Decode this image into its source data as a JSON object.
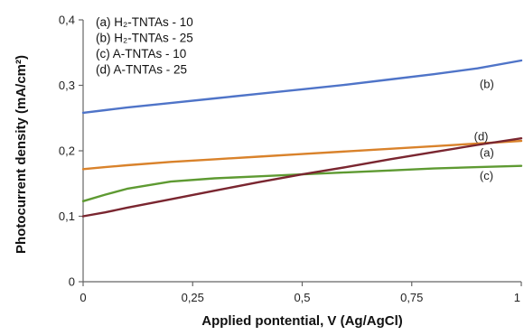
{
  "chart_data": {
    "type": "line",
    "xlabel": "Applied pontential, V (Ag/AgCl)",
    "ylabel": "Photocurrent density (mA/cm²)",
    "xlim": [
      0,
      1
    ],
    "ylim": [
      0,
      0.4
    ],
    "x_ticks": [
      "0",
      "0,25",
      "0,5",
      "0,75",
      "1"
    ],
    "y_ticks": [
      "0",
      "0,1",
      "0,2",
      "0,3",
      "0,4"
    ],
    "grid": false,
    "legend_placement": "top-left",
    "legend": [
      {
        "letter": "(a)",
        "name": "H₂-TNTAs - 10"
      },
      {
        "letter": "(b)",
        "name": "H₂-TNTAs - 25"
      },
      {
        "letter": "(c)",
        "name": "A-TNTAs - 10"
      },
      {
        "letter": "(d)",
        "name": "A-TNTAs - 25"
      }
    ],
    "x": [
      0,
      0.05,
      0.1,
      0.2,
      0.3,
      0.4,
      0.5,
      0.6,
      0.7,
      0.8,
      0.9,
      1.0
    ],
    "series": [
      {
        "label": "(a)",
        "color": "#d9822b",
        "values": [
          0.172,
          0.175,
          0.178,
          0.183,
          0.187,
          0.191,
          0.195,
          0.199,
          0.203,
          0.207,
          0.211,
          0.215
        ]
      },
      {
        "label": "(b)",
        "color": "#4f74c8",
        "values": [
          0.258,
          0.262,
          0.266,
          0.273,
          0.28,
          0.287,
          0.294,
          0.301,
          0.309,
          0.317,
          0.326,
          0.338
        ]
      },
      {
        "label": "(c)",
        "color": "#5e9a32",
        "values": [
          0.123,
          0.133,
          0.142,
          0.153,
          0.158,
          0.161,
          0.164,
          0.167,
          0.17,
          0.173,
          0.175,
          0.177
        ]
      },
      {
        "label": "(d)",
        "color": "#7a2630",
        "values": [
          0.1,
          0.106,
          0.113,
          0.126,
          0.139,
          0.152,
          0.164,
          0.175,
          0.187,
          0.198,
          0.209,
          0.219
        ]
      }
    ]
  }
}
